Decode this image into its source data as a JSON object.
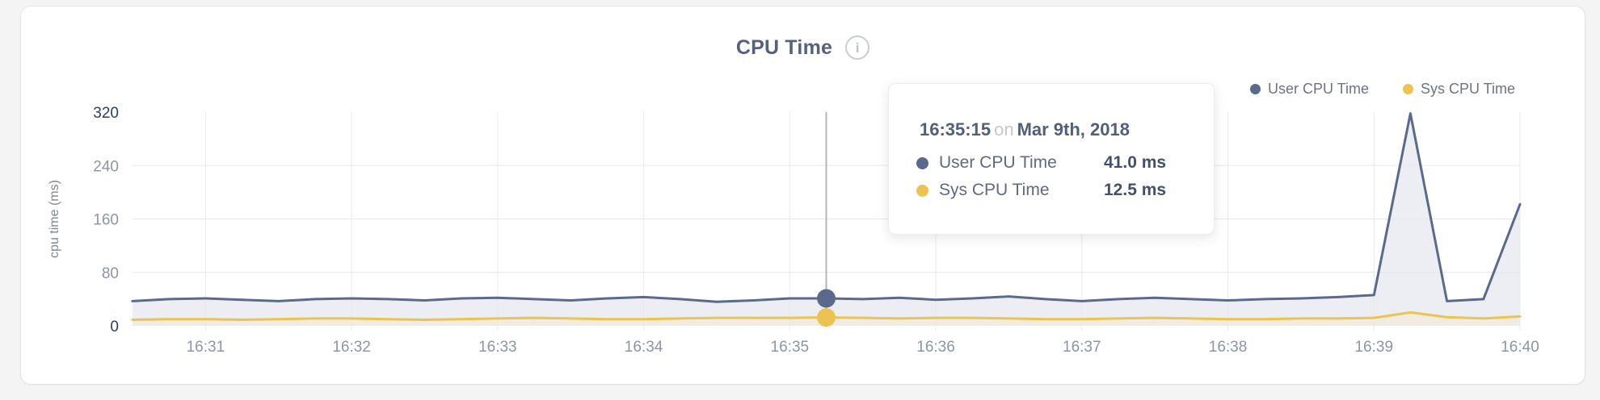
{
  "panel": {
    "title": "CPU Time",
    "info_glyph": "i"
  },
  "legend": [
    {
      "label": "User CPU Time",
      "color": "#5b6a8b"
    },
    {
      "label": "Sys CPU Time",
      "color": "#ecc352"
    }
  ],
  "tooltip": {
    "time": "16:35:15",
    "connector": "on",
    "date": "Mar 9th, 2018",
    "rows": [
      {
        "label": "User CPU Time",
        "value": "41.0 ms",
        "color": "#5b6a8b"
      },
      {
        "label": "Sys CPU Time",
        "value": "12.5 ms",
        "color": "#ecc352"
      }
    ]
  },
  "chart_data": {
    "type": "area",
    "title": "CPU Time",
    "xlabel": "",
    "ylabel": "cpu time (ms)",
    "ylim": [
      0,
      320
    ],
    "y_ticks": [
      0,
      80,
      160,
      240,
      320
    ],
    "x_tick_labels": [
      "16:31",
      "16:32",
      "16:33",
      "16:34",
      "16:35",
      "16:36",
      "16:37",
      "16:38",
      "16:39",
      "16:40"
    ],
    "grid": true,
    "legend_position": "top-right",
    "x": [
      "16:30:30",
      "16:30:45",
      "16:31:00",
      "16:31:15",
      "16:31:30",
      "16:31:45",
      "16:32:00",
      "16:32:15",
      "16:32:30",
      "16:32:45",
      "16:33:00",
      "16:33:15",
      "16:33:30",
      "16:33:45",
      "16:34:00",
      "16:34:15",
      "16:34:30",
      "16:34:45",
      "16:35:00",
      "16:35:15",
      "16:35:30",
      "16:35:45",
      "16:36:00",
      "16:36:15",
      "16:36:30",
      "16:36:45",
      "16:37:00",
      "16:37:15",
      "16:37:30",
      "16:37:45",
      "16:38:00",
      "16:38:15",
      "16:38:30",
      "16:38:45",
      "16:39:00",
      "16:39:15",
      "16:39:30",
      "16:39:45",
      "16:40:00"
    ],
    "series": [
      {
        "name": "User CPU Time",
        "color": "#5b6a8b",
        "fill": "#eceef3",
        "values": [
          37,
          40,
          41,
          39,
          37,
          40,
          41,
          40,
          38,
          41,
          42,
          40,
          38,
          41,
          43,
          40,
          36,
          38,
          41,
          41,
          40,
          42,
          39,
          41,
          44,
          40,
          37,
          40,
          42,
          40,
          38,
          40,
          41,
          43,
          46,
          318,
          37,
          40,
          182
        ]
      },
      {
        "name": "Sys CPU Time",
        "color": "#ecc352",
        "fill": "#f1ece1",
        "values": [
          9,
          10,
          10,
          9,
          10,
          11,
          11,
          10,
          9,
          10,
          11,
          12,
          11,
          10,
          10,
          11,
          12,
          12,
          12,
          12.5,
          12,
          11,
          12,
          12,
          11,
          10,
          10,
          11,
          12,
          11,
          10,
          10,
          11,
          11,
          12,
          20,
          13,
          11,
          14
        ]
      }
    ],
    "highlight": {
      "index": 19,
      "time": "16:35:15",
      "crosshair_color": "#b5b6b9"
    },
    "axis_colors": {
      "tick_label": "#8d95a5",
      "tick_label_emphasis": "#2d3e5d",
      "axis_title": "#7e8795",
      "gridline": "#e7e8ea"
    }
  }
}
